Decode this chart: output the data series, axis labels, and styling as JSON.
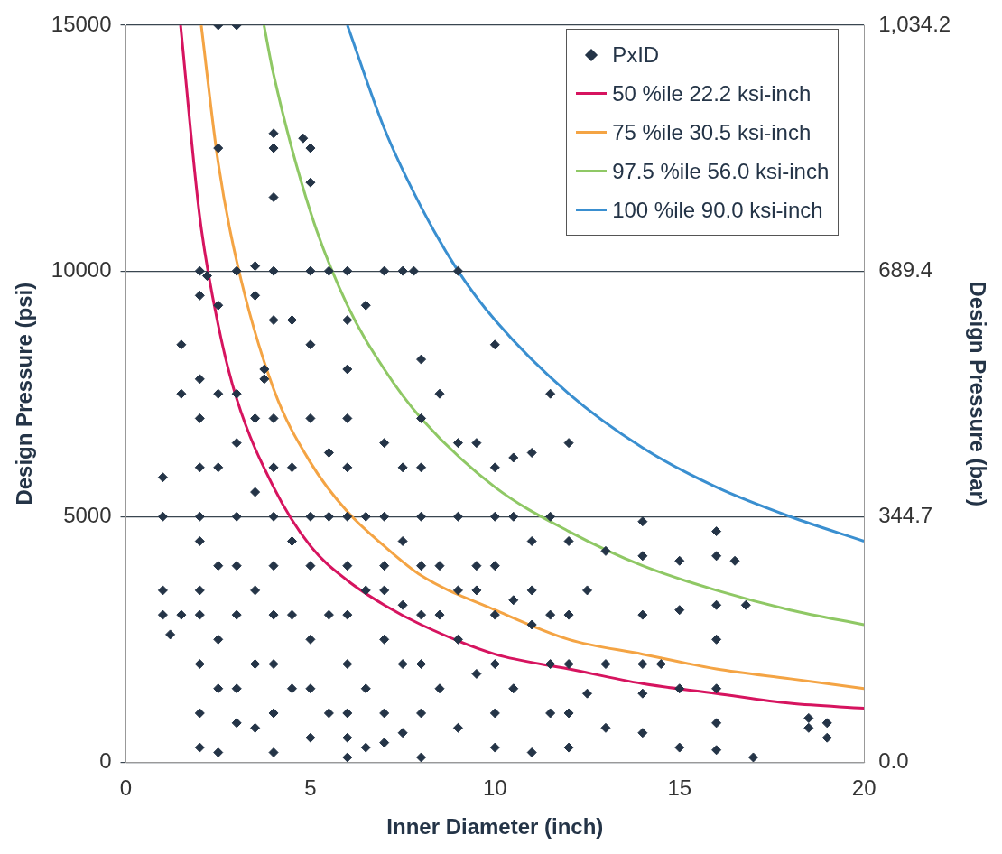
{
  "chart_data": {
    "type": "scatter",
    "xlabel": "Inner Diameter (inch)",
    "ylabel": "Design Pressure (psi)",
    "y2label": "Design Pressure (bar)",
    "xlim": [
      0,
      20
    ],
    "xticks": [
      0,
      5,
      10,
      15,
      20
    ],
    "ylim": [
      0,
      15000
    ],
    "yticks": [
      0,
      5000,
      10000,
      15000
    ],
    "y2lim": [
      0,
      1034.2
    ],
    "y2ticks": [
      {
        "value": 0,
        "label": "0.0"
      },
      344.7,
      689.4,
      {
        "value": 1034.2,
        "label": "1,034.2"
      }
    ],
    "grid": "y",
    "legend": "top right",
    "series": [
      {
        "name": "PxID",
        "marker": "diamond",
        "color": "#243447",
        "x": [
          1,
          1,
          1,
          1,
          1.2,
          1.5,
          1.5,
          1.5,
          2,
          2,
          2,
          2,
          2,
          2,
          2,
          2,
          2,
          2,
          2,
          2,
          2.2,
          2.5,
          2.5,
          2.5,
          2.5,
          2.5,
          2.5,
          2.5,
          2.5,
          2.5,
          3,
          3,
          3,
          3,
          3,
          3,
          3,
          3,
          3,
          3.5,
          3.5,
          3.5,
          3.5,
          3.5,
          3.5,
          3.5,
          3.75,
          3.75,
          4,
          4,
          4,
          4,
          4,
          4,
          4,
          4,
          4,
          4,
          4,
          4,
          4,
          4.5,
          4.5,
          4.5,
          4.5,
          4.5,
          4.8,
          5,
          5,
          5,
          5,
          5,
          5,
          5,
          5,
          5,
          5,
          5.5,
          5.5,
          5.5,
          5.5,
          5.5,
          6,
          6,
          6,
          6,
          6,
          6,
          6,
          6,
          6,
          6,
          6,
          6,
          6.5,
          6.5,
          6.5,
          6.5,
          6.5,
          7,
          7,
          7,
          7,
          7,
          7,
          7,
          7,
          7.5,
          7.5,
          7.5,
          7.5,
          7.5,
          7.5,
          7.8,
          8,
          8,
          8,
          8,
          8,
          8,
          8,
          8,
          8,
          8.5,
          8.5,
          8.5,
          8.5,
          9,
          9,
          9,
          9,
          9,
          9,
          9.5,
          9.5,
          9.5,
          9.5,
          10,
          10,
          10,
          10,
          10,
          10,
          10,
          10,
          10.5,
          10.5,
          10.5,
          10.5,
          11,
          11,
          11,
          11,
          11,
          11.5,
          11.5,
          11.5,
          11.5,
          11.5,
          12,
          12,
          12,
          12,
          12,
          12,
          12.5,
          12.5,
          13,
          13,
          13,
          14,
          14,
          14,
          14,
          14,
          14,
          14.5,
          15,
          15,
          15,
          15,
          16,
          16,
          16,
          16,
          16,
          16,
          16,
          16.5,
          16.8,
          17,
          18.5,
          18.5,
          19,
          19
        ],
        "values": [
          5800,
          5000,
          3500,
          3000,
          2600,
          8500,
          7500,
          3000,
          10000,
          9500,
          7800,
          7000,
          6000,
          5000,
          4500,
          3500,
          3000,
          2000,
          1000,
          300,
          9900,
          15000,
          12500,
          9300,
          7500,
          6000,
          4000,
          2500,
          1500,
          200,
          15000,
          10000,
          7500,
          6500,
          5000,
          4000,
          3000,
          1500,
          800,
          10100,
          9500,
          7000,
          5500,
          3500,
          2000,
          700,
          8000,
          7800,
          12800,
          12500,
          11500,
          10000,
          9000,
          7000,
          6000,
          5000,
          4000,
          3000,
          2000,
          1000,
          200,
          9000,
          6000,
          4500,
          3000,
          1500,
          12700,
          12500,
          11800,
          10000,
          8500,
          7000,
          5000,
          4000,
          2500,
          1500,
          500,
          10000,
          6300,
          5000,
          3000,
          1000,
          10000,
          9000,
          8000,
          7000,
          6000,
          5000,
          4000,
          3000,
          2000,
          1000,
          500,
          100,
          9300,
          5000,
          3500,
          1500,
          300,
          10000,
          6500,
          5000,
          4000,
          3500,
          2500,
          1000,
          400,
          10000,
          6000,
          4500,
          3200,
          2000,
          600,
          10000,
          8200,
          7000,
          6000,
          5000,
          4000,
          3000,
          2000,
          1000,
          100,
          7500,
          4000,
          3000,
          1500,
          10000,
          6500,
          5000,
          3500,
          2500,
          700,
          6500,
          4000,
          3500,
          1800,
          8500,
          6000,
          5000,
          4000,
          3000,
          2000,
          1000,
          300,
          6200,
          5000,
          3300,
          1500,
          6300,
          4500,
          3500,
          2800,
          200,
          7500,
          5000,
          3000,
          2000,
          1000,
          6500,
          4500,
          3000,
          2000,
          1000,
          300,
          3500,
          1400,
          4300,
          2000,
          700,
          4900,
          4200,
          3000,
          2000,
          1400,
          600,
          2000,
          4100,
          3100,
          1500,
          300,
          4700,
          4200,
          3200,
          2500,
          1500,
          800,
          250,
          4100,
          3200,
          100,
          900,
          700,
          800,
          500
        ]
      },
      {
        "name": "50 %ile 22.2 ksi-inch",
        "type": "line",
        "marker": "none",
        "color": "#d6145f",
        "x": [
          1.48,
          2,
          2.5,
          3,
          4,
          5,
          6,
          7,
          8,
          10,
          12,
          14,
          16,
          18,
          20
        ],
        "values": [
          15000,
          11100,
          8900,
          7400,
          5600,
          4400,
          3700,
          3200,
          2800,
          2200,
          1900,
          1600,
          1400,
          1200,
          1100
        ]
      },
      {
        "name": "75 %ile 30.5 ksi-inch",
        "type": "line",
        "marker": "none",
        "color": "#f4a444",
        "x": [
          2.04,
          2.5,
          3,
          4,
          5,
          6,
          7,
          8,
          10,
          12,
          14,
          16,
          18,
          20
        ],
        "values": [
          15000,
          12200,
          10200,
          7600,
          6100,
          5100,
          4400,
          3800,
          3100,
          2500,
          2200,
          1900,
          1700,
          1500
        ]
      },
      {
        "name": "97.5 %ile 56.0 ksi-inch",
        "type": "line",
        "marker": "none",
        "color": "#8fc865",
        "x": [
          3.74,
          4,
          5,
          6,
          7,
          8,
          10,
          12,
          14,
          16,
          18,
          20
        ],
        "values": [
          15000,
          14000,
          11200,
          9300,
          8000,
          7000,
          5600,
          4700,
          4000,
          3500,
          3100,
          2800
        ]
      },
      {
        "name": "100 %ile 90.0 ksi-inch",
        "type": "line",
        "marker": "none",
        "color": "#3a8fd0",
        "x": [
          6,
          7,
          8,
          9,
          10,
          12,
          14,
          16,
          18,
          20
        ],
        "values": [
          15000,
          12900,
          11300,
          10000,
          9000,
          7500,
          6400,
          5600,
          5000,
          4500
        ]
      }
    ]
  }
}
